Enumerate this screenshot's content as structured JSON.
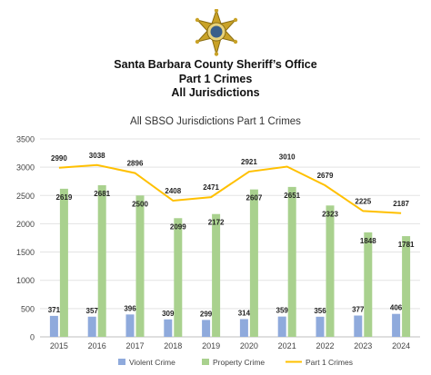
{
  "header": {
    "line1": "Santa Barbara County Sheriff’s Office",
    "line2": "Part 1 Crimes",
    "line3": "All Jurisdictions"
  },
  "colors": {
    "violent": "#8faadc",
    "property": "#a9d18e",
    "part1": "#ffc000",
    "badge_gold": "#c9a227",
    "badge_center": "#3a5f8a"
  },
  "chart_data": {
    "type": "bar",
    "title": "All SBSO Jurisdictions Part 1 Crimes",
    "categories": [
      "2015",
      "2016",
      "2017",
      "2018",
      "2019",
      "2020",
      "2021",
      "2022",
      "2023",
      "2024"
    ],
    "ylim": [
      0,
      3500
    ],
    "yticks": [
      0,
      500,
      1000,
      1500,
      2000,
      2500,
      3000,
      3500
    ],
    "grid": true,
    "legend": "bottom",
    "series": [
      {
        "name": "Violent Crime",
        "type": "bar",
        "values": [
          371,
          357,
          396,
          309,
          299,
          314,
          359,
          356,
          377,
          406
        ]
      },
      {
        "name": "Property Crime",
        "type": "bar",
        "values": [
          2619,
          2681,
          2500,
          2099,
          2172,
          2607,
          2651,
          2323,
          1848,
          1781
        ]
      },
      {
        "name": "Part 1 Crimes",
        "type": "line",
        "values": [
          2990,
          3038,
          2896,
          2408,
          2471,
          2921,
          3010,
          2679,
          2225,
          2187
        ]
      }
    ]
  }
}
